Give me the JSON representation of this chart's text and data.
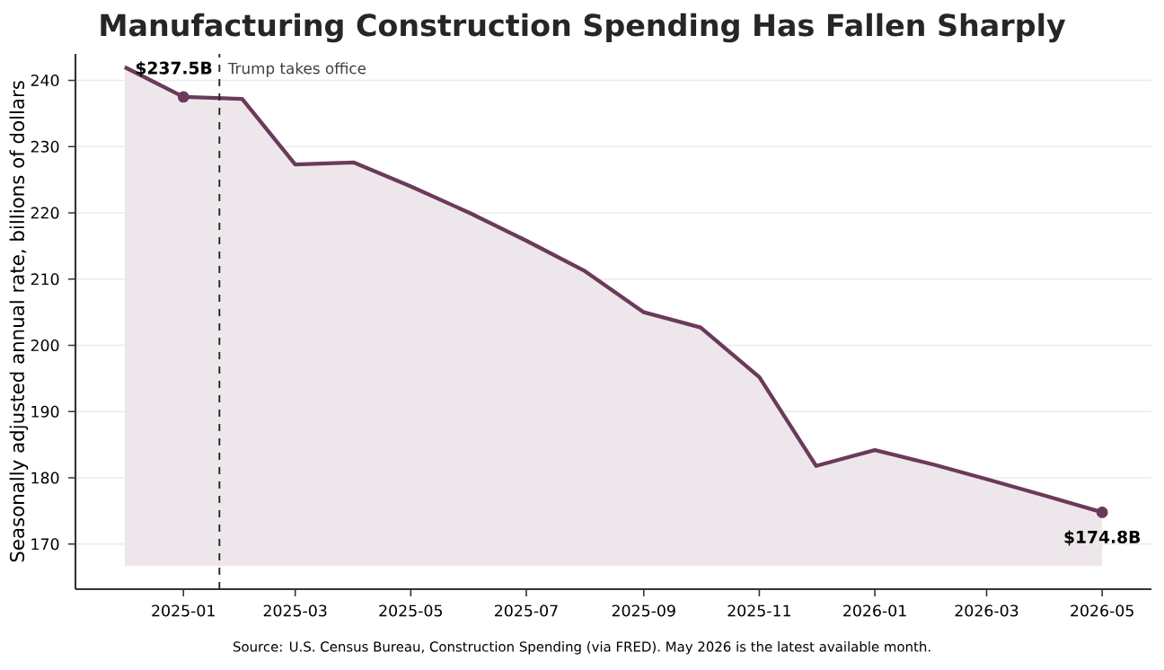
{
  "chart_data": {
    "type": "line",
    "title": "Manufacturing Construction Spending Has Fallen Sharply",
    "ylabel": "Seasonally adjusted annual rate, billions of dollars",
    "x": [
      "2024-12",
      "2025-01",
      "2025-02",
      "2025-03",
      "2025-04",
      "2025-05",
      "2025-06",
      "2025-07",
      "2025-08",
      "2025-09",
      "2025-10",
      "2025-11",
      "2025-12",
      "2026-01",
      "2026-02",
      "2026-03",
      "2026-04",
      "2026-05"
    ],
    "series": [
      {
        "color": "#6b3a5b",
        "values": [
          242,
          237.5,
          237.2,
          227.3,
          227.6,
          224,
          220,
          215.8,
          211.2,
          205,
          202.7,
          195.2,
          181.8,
          184.2,
          182,
          179.8,
          177.3,
          174.8
        ],
        "lower": [
          166.7,
          166.7,
          166.7,
          166.7,
          166.7,
          166.7,
          166.7,
          166.7,
          166.7,
          166.7,
          166.7,
          166.7,
          166.7,
          166.7,
          166.7,
          166.7,
          166.7,
          166.7
        ],
        "upper": [
          242,
          237.5,
          237.2,
          227.3,
          227.6,
          224,
          220,
          215.8,
          211.2,
          205,
          202.7,
          195.2,
          181.8,
          184.2,
          182,
          179.8,
          177.3,
          174.8
        ],
        "value_labels": [
          null,
          "$237.5B",
          null,
          null,
          null,
          null,
          null,
          null,
          null,
          null,
          null,
          null,
          null,
          null,
          null,
          null,
          null,
          "$174.8B"
        ]
      }
    ],
    "xlim": [
      "2024-11-05",
      "2026-05-27"
    ],
    "ylim": [
      163.2,
      244
    ],
    "xticks": [
      "2025-01",
      "2025-03",
      "2025-05",
      "2025-07",
      "2025-09",
      "2025-11",
      "2026-01",
      "2026-03",
      "2026-05"
    ],
    "yticks": [
      170,
      180,
      190,
      200,
      210,
      220,
      230,
      240
    ],
    "grid": "y",
    "line_style": "solid",
    "ref_lines": [
      {
        "axis": "x",
        "value": "2025-01-20",
        "label": "Trump takes office",
        "color": "#222222",
        "line_style": "dashed"
      }
    ],
    "annotations": [
      "Source: U.S. Census Bureau, Construction Spending (via FRED). May 2026 is the latest available month."
    ]
  }
}
